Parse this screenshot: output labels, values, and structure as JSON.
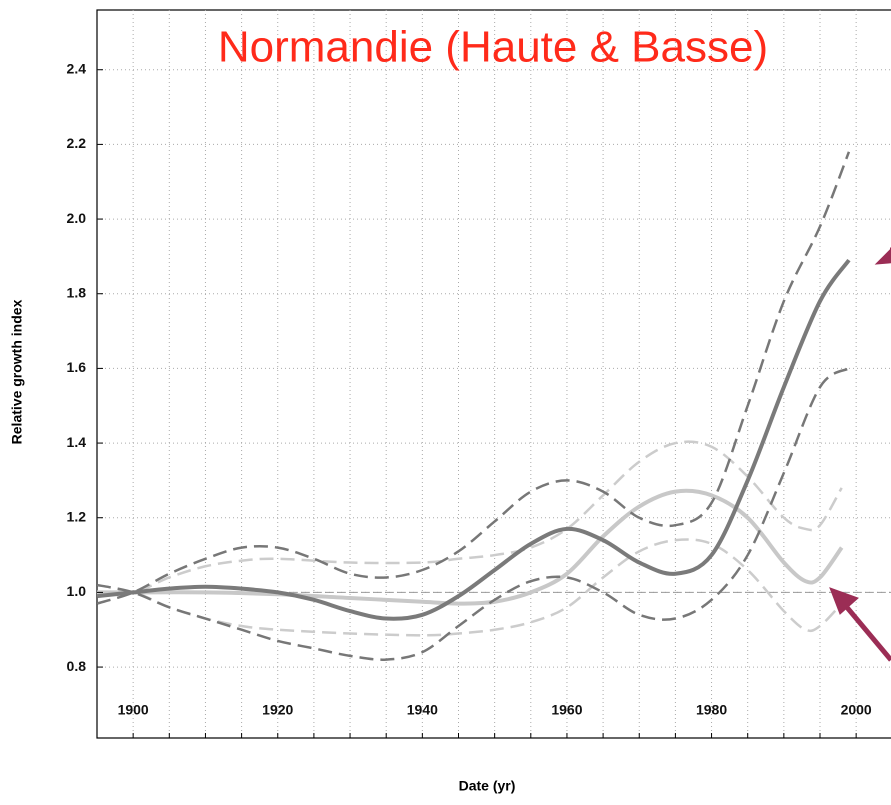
{
  "chart_data": {
    "type": "line",
    "title": "Normandie (Haute & Basse)",
    "x_label": "Date (yr)",
    "y_label": "Relative growth index",
    "xlim": [
      1895,
      2005
    ],
    "ylim": [
      0.61,
      2.56
    ],
    "xticks": [
      1900,
      1920,
      1940,
      1960,
      1980,
      2000
    ],
    "x_minor_ticks": [
      1900,
      1905,
      1910,
      1915,
      1920,
      1925,
      1930,
      1935,
      1940,
      1945,
      1950,
      1955,
      1960,
      1965,
      1970,
      1975,
      1980,
      1985,
      1990,
      1995,
      2000
    ],
    "yticks": [
      {
        "value": 0.8,
        "label": "0.8"
      },
      {
        "value": 1.0,
        "label": "1.0"
      },
      {
        "value": 1.2,
        "label": "1.2"
      },
      {
        "value": 1.4,
        "label": "1.4"
      },
      {
        "value": 1.6,
        "label": "1.6"
      },
      {
        "value": 1.8,
        "label": "1.8"
      },
      {
        "value": 2.0,
        "label": "2.0"
      },
      {
        "value": 2.2,
        "label": "2.2"
      },
      {
        "value": 2.4,
        "label": "2.4"
      }
    ],
    "grid": true,
    "reference_line": 1.0,
    "series": [
      {
        "color": "#cccccc",
        "dash": true,
        "width": 2.5,
        "x": [
          1895,
          1900,
          1905,
          1910,
          1915,
          1920,
          1930,
          1940,
          1945,
          1950,
          1955,
          1960,
          1965,
          1970,
          1975,
          1980,
          1985,
          1990,
          1993,
          1995,
          1998
        ],
        "values": [
          1.0,
          1.0,
          1.04,
          1.07,
          1.085,
          1.09,
          1.08,
          1.08,
          1.09,
          1.1,
          1.12,
          1.17,
          1.26,
          1.35,
          1.4,
          1.39,
          1.31,
          1.2,
          1.17,
          1.18,
          1.28
        ]
      },
      {
        "color": "#cccccc",
        "dash": true,
        "width": 2.5,
        "x": [
          1895,
          1900,
          1905,
          1910,
          1915,
          1920,
          1930,
          1940,
          1945,
          1950,
          1955,
          1960,
          1965,
          1970,
          1975,
          1980,
          1985,
          1990,
          1993,
          1995,
          1998
        ],
        "values": [
          1.0,
          1.0,
          0.96,
          0.93,
          0.91,
          0.9,
          0.89,
          0.885,
          0.89,
          0.9,
          0.92,
          0.96,
          1.04,
          1.11,
          1.14,
          1.13,
          1.06,
          0.95,
          0.9,
          0.91,
          0.97
        ]
      },
      {
        "color": "#c8c8c8",
        "dash": false,
        "width": 4,
        "x": [
          1895,
          1900,
          1910,
          1920,
          1930,
          1940,
          1945,
          1950,
          1955,
          1960,
          1965,
          1970,
          1975,
          1980,
          1985,
          1990,
          1993,
          1995,
          1998
        ],
        "values": [
          1.0,
          1.0,
          1.0,
          0.995,
          0.985,
          0.975,
          0.97,
          0.975,
          1.0,
          1.05,
          1.15,
          1.23,
          1.27,
          1.26,
          1.2,
          1.08,
          1.03,
          1.04,
          1.12
        ]
      },
      {
        "color": "#777777",
        "dash": true,
        "width": 2.5,
        "x": [
          1895,
          1900,
          1905,
          1910,
          1915,
          1920,
          1925,
          1930,
          1935,
          1940,
          1945,
          1950,
          1955,
          1960,
          1965,
          1970,
          1975,
          1980,
          1985,
          1990,
          1995,
          1999
        ],
        "values": [
          0.97,
          1.0,
          1.05,
          1.09,
          1.12,
          1.12,
          1.09,
          1.05,
          1.04,
          1.06,
          1.11,
          1.19,
          1.27,
          1.3,
          1.27,
          1.2,
          1.18,
          1.24,
          1.5,
          1.78,
          1.98,
          2.18
        ]
      },
      {
        "color": "#777777",
        "dash": true,
        "width": 2.5,
        "x": [
          1895,
          1900,
          1905,
          1910,
          1915,
          1920,
          1925,
          1930,
          1935,
          1940,
          1945,
          1950,
          1955,
          1960,
          1965,
          1970,
          1975,
          1980,
          1985,
          1990,
          1995,
          1999
        ],
        "values": [
          1.02,
          1.0,
          0.96,
          0.93,
          0.9,
          0.87,
          0.85,
          0.83,
          0.82,
          0.84,
          0.91,
          0.98,
          1.03,
          1.04,
          1.0,
          0.94,
          0.93,
          0.98,
          1.1,
          1.32,
          1.55,
          1.6
        ]
      },
      {
        "color": "#7a7a7a",
        "dash": false,
        "width": 4,
        "x": [
          1895,
          1900,
          1905,
          1910,
          1915,
          1920,
          1925,
          1930,
          1935,
          1940,
          1945,
          1950,
          1955,
          1960,
          1965,
          1970,
          1975,
          1980,
          1985,
          1990,
          1995,
          1999
        ],
        "values": [
          0.99,
          1.0,
          1.01,
          1.015,
          1.01,
          1.0,
          0.98,
          0.95,
          0.93,
          0.94,
          0.99,
          1.06,
          1.13,
          1.17,
          1.14,
          1.08,
          1.05,
          1.1,
          1.3,
          1.55,
          1.78,
          1.89
        ]
      }
    ]
  }
}
